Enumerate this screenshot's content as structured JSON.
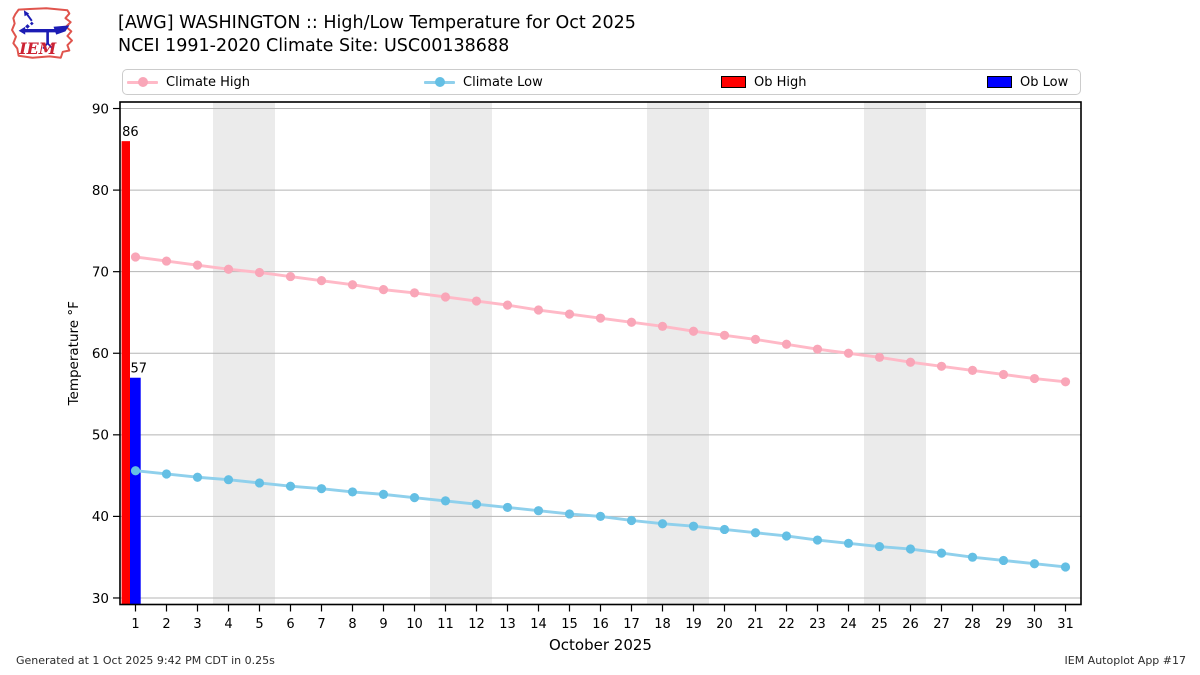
{
  "header": {
    "title_line1": "[AWG] WASHINGTON :: High/Low Temperature for Oct 2025",
    "title_line2": "NCEI 1991-2020 Climate Site: USC00138688",
    "logo_text": "IEM"
  },
  "legend": {
    "items": [
      {
        "label": "Climate High",
        "type": "line",
        "color": "#ffb9c7",
        "marker_color": "#f9a6b8"
      },
      {
        "label": "Climate Low",
        "type": "line",
        "color": "#8fd0ec",
        "marker_color": "#64bfe4"
      },
      {
        "label": "Ob High",
        "type": "patch",
        "color": "#ff0000"
      },
      {
        "label": "Ob Low",
        "type": "patch",
        "color": "#0000ff"
      }
    ]
  },
  "footer": {
    "left": "Generated at 1 Oct 2025 9:42 PM CDT in 0.25s",
    "right": "IEM Autoplot App #17"
  },
  "chart_data": {
    "type": "line",
    "title": "[AWG] WASHINGTON :: High/Low Temperature for Oct 2025",
    "subtitle": "NCEI 1991-2020 Climate Site: USC00138688",
    "xlabel": "October 2025",
    "ylabel": "Temperature °F",
    "x": [
      1,
      2,
      3,
      4,
      5,
      6,
      7,
      8,
      9,
      10,
      11,
      12,
      13,
      14,
      15,
      16,
      17,
      18,
      19,
      20,
      21,
      22,
      23,
      24,
      25,
      26,
      27,
      28,
      29,
      30,
      31
    ],
    "ylim": [
      29.2,
      90.8
    ],
    "yticks": [
      30,
      40,
      50,
      60,
      70,
      80,
      90
    ],
    "grid": "horizontal",
    "gridline_color": "#b5b5b5",
    "weekend_band_color": "#ebebeb",
    "weekend_bands_x": [
      [
        3.5,
        5.5
      ],
      [
        10.5,
        12.5
      ],
      [
        17.5,
        19.5
      ],
      [
        24.5,
        26.5
      ]
    ],
    "legend_position": "top",
    "series": [
      {
        "name": "Climate High",
        "type": "line",
        "color": "#ffb9c7",
        "marker_color": "#f9a6b8",
        "values": [
          71.8,
          71.3,
          70.8,
          70.3,
          69.9,
          69.4,
          68.9,
          68.4,
          67.8,
          67.4,
          66.9,
          66.4,
          65.9,
          65.3,
          64.8,
          64.3,
          63.8,
          63.3,
          62.7,
          62.2,
          61.7,
          61.1,
          60.5,
          60.0,
          59.5,
          58.9,
          58.4,
          57.9,
          57.4,
          56.9,
          56.5
        ]
      },
      {
        "name": "Climate Low",
        "type": "line",
        "color": "#8fd0ec",
        "marker_color": "#64bfe4",
        "values": [
          45.6,
          45.2,
          44.8,
          44.5,
          44.1,
          43.7,
          43.4,
          43.0,
          42.7,
          42.3,
          41.9,
          41.5,
          41.1,
          40.7,
          40.3,
          40.0,
          39.5,
          39.1,
          38.8,
          38.4,
          38.0,
          37.6,
          37.1,
          36.7,
          36.3,
          36.0,
          35.5,
          35.0,
          34.6,
          34.2,
          33.8
        ]
      },
      {
        "name": "Ob High",
        "type": "bar",
        "color": "#ff0000",
        "points": [
          {
            "x": 1,
            "value": 86,
            "label": "86"
          }
        ]
      },
      {
        "name": "Ob Low",
        "type": "bar",
        "color": "#0000ff",
        "points": [
          {
            "x": 1,
            "value": 57,
            "label": "57"
          }
        ]
      }
    ]
  }
}
